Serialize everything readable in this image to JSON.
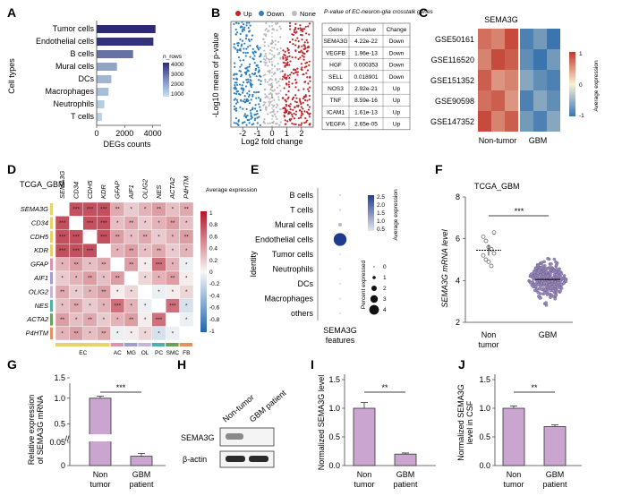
{
  "panels": {
    "A": "A",
    "B": "B",
    "C": "C",
    "D": "D",
    "E": "E",
    "F": "F",
    "G": "G",
    "H": "H",
    "I": "I",
    "J": "J"
  },
  "colors": {
    "navy": "#2d2a73",
    "purple_bar": "#c9a5cf",
    "up_red": "#c0272d",
    "down_blue": "#2d7fbf",
    "none_grey": "#bbbbbb",
    "heat_high": "#c0392b",
    "heat_low": "#3a75b0"
  },
  "chart_data": [
    {
      "id": "A",
      "type": "bar",
      "orientation": "horizontal",
      "ylabel": "Cell types",
      "xlabel": "DEGs counts",
      "categories": [
        "Tumor cells",
        "Endothelial cells",
        "B cells",
        "Mural cells",
        "DCs",
        "Macrophages",
        "Neutrophils",
        "T cells"
      ],
      "values": [
        4200,
        4050,
        2600,
        1450,
        1050,
        850,
        550,
        380
      ],
      "xticks": [
        "0",
        "2000",
        "4000"
      ],
      "xlim": [
        0,
        4600
      ],
      "legend_title": "n_rows",
      "legend_ticks": [
        "4000",
        "3000",
        "2000",
        "1000"
      ]
    },
    {
      "id": "B",
      "type": "scatter",
      "subtype": "volcano",
      "xlabel": "Log2 fold change",
      "ylabel": "-Log10 mean of p-value",
      "xticks": [
        "-2",
        "-1",
        "0",
        "1",
        "2"
      ],
      "xlim": [
        -2.8,
        2.8
      ],
      "legend": [
        "Up",
        "Down",
        "None"
      ],
      "table_title": "P-value of EC-neuron-glia crosstalk genes",
      "table_header": [
        "Gene",
        "P-value",
        "Change"
      ],
      "table_rows": [
        [
          "SEMA3G",
          "4.22e-22",
          "Down"
        ],
        [
          "VEGFB",
          "1.96e-13",
          "Down"
        ],
        [
          "HGF",
          "0.000353",
          "Down"
        ],
        [
          "SELL",
          "0.018901",
          "Down"
        ],
        [
          "NOS3",
          "2.92e-21",
          "Up"
        ],
        [
          "TNF",
          "8.59e-16",
          "Up"
        ],
        [
          "ICAM1",
          "1.61e-13",
          "Up"
        ],
        [
          "VEGFA",
          "2.65e-05",
          "Up"
        ]
      ]
    },
    {
      "id": "C",
      "type": "heatmap",
      "title": "SEMA3G",
      "rows": [
        "GSE50161",
        "GSE116520",
        "GSE151352",
        "GSE90598",
        "GSE147352"
      ],
      "col_groups": [
        "Non-tumor",
        "GBM"
      ],
      "values": [
        [
          0.7,
          0.6,
          0.9,
          -0.9,
          -0.7,
          -1.0
        ],
        [
          0.6,
          0.9,
          0.8,
          -0.8,
          -1.0,
          -0.7
        ],
        [
          0.8,
          0.5,
          0.6,
          -0.6,
          -0.8,
          -0.9
        ],
        [
          0.7,
          0.8,
          0.5,
          -0.9,
          -0.6,
          -0.8
        ],
        [
          0.9,
          0.6,
          0.8,
          -0.7,
          -0.9,
          -0.6
        ]
      ],
      "legend_title": "Average expression",
      "legend_ticks": [
        "1",
        "0",
        "-1"
      ]
    },
    {
      "id": "D",
      "type": "heatmap",
      "subtype": "correlation",
      "title": "TCGA_GBM",
      "genes": [
        "SEMA3G",
        "CD34",
        "CDH5",
        "KDR",
        "GFAP",
        "AIF1",
        "OLIG2",
        "NES",
        "ACTA2",
        "P4HTM"
      ],
      "groups": [
        {
          "label": "EC",
          "genes": [
            "SEMA3G",
            "CD34",
            "CDH5",
            "KDR"
          ]
        },
        {
          "label": "AC",
          "genes": [
            "GFAP"
          ]
        },
        {
          "label": "MG",
          "genes": [
            "AIF1"
          ]
        },
        {
          "label": "OL",
          "genes": [
            "OLIG2"
          ]
        },
        {
          "label": "PC",
          "genes": [
            "NES"
          ]
        },
        {
          "label": "SMC",
          "genes": [
            "ACTA2"
          ]
        },
        {
          "label": "FB",
          "genes": [
            "P4HTM"
          ]
        }
      ],
      "legend_title": "Average expression",
      "legend_ticks": [
        "1",
        "0.8",
        "0.6",
        "0.4",
        "0.2",
        "0",
        "-0.2",
        "-0.4",
        "-0.6",
        "-0.8",
        "-1"
      ]
    },
    {
      "id": "E",
      "type": "scatter",
      "subtype": "dotplot",
      "ylabel": "Identity",
      "xlabel": "SEMA3G features",
      "categories": [
        "B cells",
        "T cells",
        "Mural cells",
        "Endothelial cells",
        "Tumor cells",
        "Neutrophils",
        "DCs",
        "Macrophages",
        "others"
      ],
      "avg_expression": [
        0.1,
        0.1,
        0.6,
        2.5,
        0.05,
        0.05,
        0.05,
        0.05,
        0.05
      ],
      "pct_expressed": [
        0.3,
        0.3,
        0.8,
        3.8,
        0.2,
        0.2,
        0.2,
        0.2,
        0.2
      ],
      "legend_avg_title": "Average expression",
      "legend_avg_ticks": [
        "2.5",
        "2.0",
        "1.5",
        "1.0",
        "0.5"
      ],
      "legend_pct_title": "Percent expressed",
      "legend_pct_ticks": [
        "0",
        "1",
        "2",
        "3",
        "4"
      ]
    },
    {
      "id": "F",
      "type": "scatter",
      "subtype": "dot-with-mean",
      "title": "TCGA_GBM",
      "ylabel": "SEMA3G mRNA level",
      "categories": [
        "Non\ntumor",
        "GBM"
      ],
      "means": [
        5.45,
        4.05
      ],
      "sem": [
        0.25,
        0.03
      ],
      "yticks": [
        "2",
        "4",
        "6",
        "8"
      ],
      "ylim": [
        2,
        8
      ],
      "significance": "***"
    },
    {
      "id": "G",
      "type": "bar",
      "ylabel": "Relative expression\nof SEMA3G mRNA",
      "categories": [
        "Non\ntumor",
        "GBM\npatient"
      ],
      "values": [
        1.0,
        0.02
      ],
      "errors": [
        0.05,
        0.006
      ],
      "yticks": [
        "0",
        "0.05",
        "0.5",
        "1.0",
        "1.5"
      ],
      "axis_break": true,
      "significance": "***"
    },
    {
      "id": "H",
      "type": "table",
      "subtype": "western-blot",
      "lane_labels": [
        "Non-tumor",
        "GBM patient"
      ],
      "bands": [
        "SEMA3G",
        "β-actin"
      ]
    },
    {
      "id": "I",
      "type": "bar",
      "ylabel": "Normalized SEMA3G level",
      "categories": [
        "Non\ntumor",
        "GBM\npatient"
      ],
      "values": [
        1.0,
        0.2
      ],
      "errors": [
        0.1,
        0.02
      ],
      "yticks": [
        "0.0",
        "0.5",
        "1.0",
        "1.5"
      ],
      "ylim": [
        0,
        1.5
      ],
      "significance": "**"
    },
    {
      "id": "J",
      "type": "bar",
      "ylabel": "Normalized SEMA3G\nlevel in CSF",
      "categories": [
        "Non\ntumor",
        "GBM\npatient"
      ],
      "values": [
        1.0,
        0.68
      ],
      "errors": [
        0.04,
        0.03
      ],
      "yticks": [
        "0.0",
        "0.5",
        "1.0",
        "1.5"
      ],
      "ylim": [
        0,
        1.5
      ],
      "significance": "**"
    }
  ]
}
